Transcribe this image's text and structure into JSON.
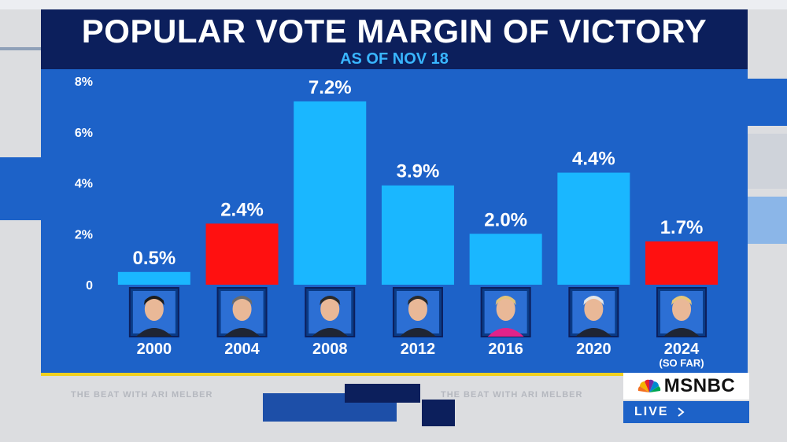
{
  "chart_data": {
    "type": "bar",
    "title": "POPULAR VOTE MARGIN OF VICTORY",
    "subtitle": "AS OF NOV 18",
    "categories": [
      "2000",
      "2004",
      "2008",
      "2012",
      "2016",
      "2020",
      "2024"
    ],
    "category_notes": [
      "",
      "",
      "",
      "",
      "",
      "",
      "(SO FAR)"
    ],
    "values": [
      0.5,
      2.4,
      7.2,
      3.9,
      2.0,
      4.4,
      1.7
    ],
    "value_labels": [
      "0.5%",
      "2.4%",
      "7.2%",
      "3.9%",
      "2.0%",
      "4.4%",
      "1.7%"
    ],
    "bar_colors": [
      "#1ab7ff",
      "#ff1010",
      "#1ab7ff",
      "#1ab7ff",
      "#1ab7ff",
      "#1ab7ff",
      "#ff1010"
    ],
    "photo_icons": [
      "al-gore-portrait-icon",
      "george-w-bush-portrait-icon",
      "barack-obama-portrait-icon",
      "barack-obama-portrait-icon",
      "hillary-clinton-portrait-icon",
      "joe-biden-portrait-icon",
      "donald-trump-portrait-icon"
    ],
    "y_ticks": [
      "0",
      "2%",
      "4%",
      "6%",
      "8%"
    ],
    "ylim": [
      0,
      8
    ],
    "xlabel": "",
    "ylabel": "",
    "grid": false,
    "legend": "none"
  },
  "colors": {
    "democrat": "#1ab7ff",
    "republican": "#ff1010",
    "panel": "#1d62c8",
    "title_bar": "#0c1f5c",
    "subtitle": "#39b6ff"
  },
  "network": {
    "logo_text": "MSNBC",
    "live_label": "LIVE",
    "live_icon": "chevron-right-icon",
    "logo_icon": "peacock-icon"
  },
  "ticker": {
    "text_a": "THE BEAT WITH ARI MELBER",
    "text_b": "THE BEAT WITH ARI MELBER"
  }
}
